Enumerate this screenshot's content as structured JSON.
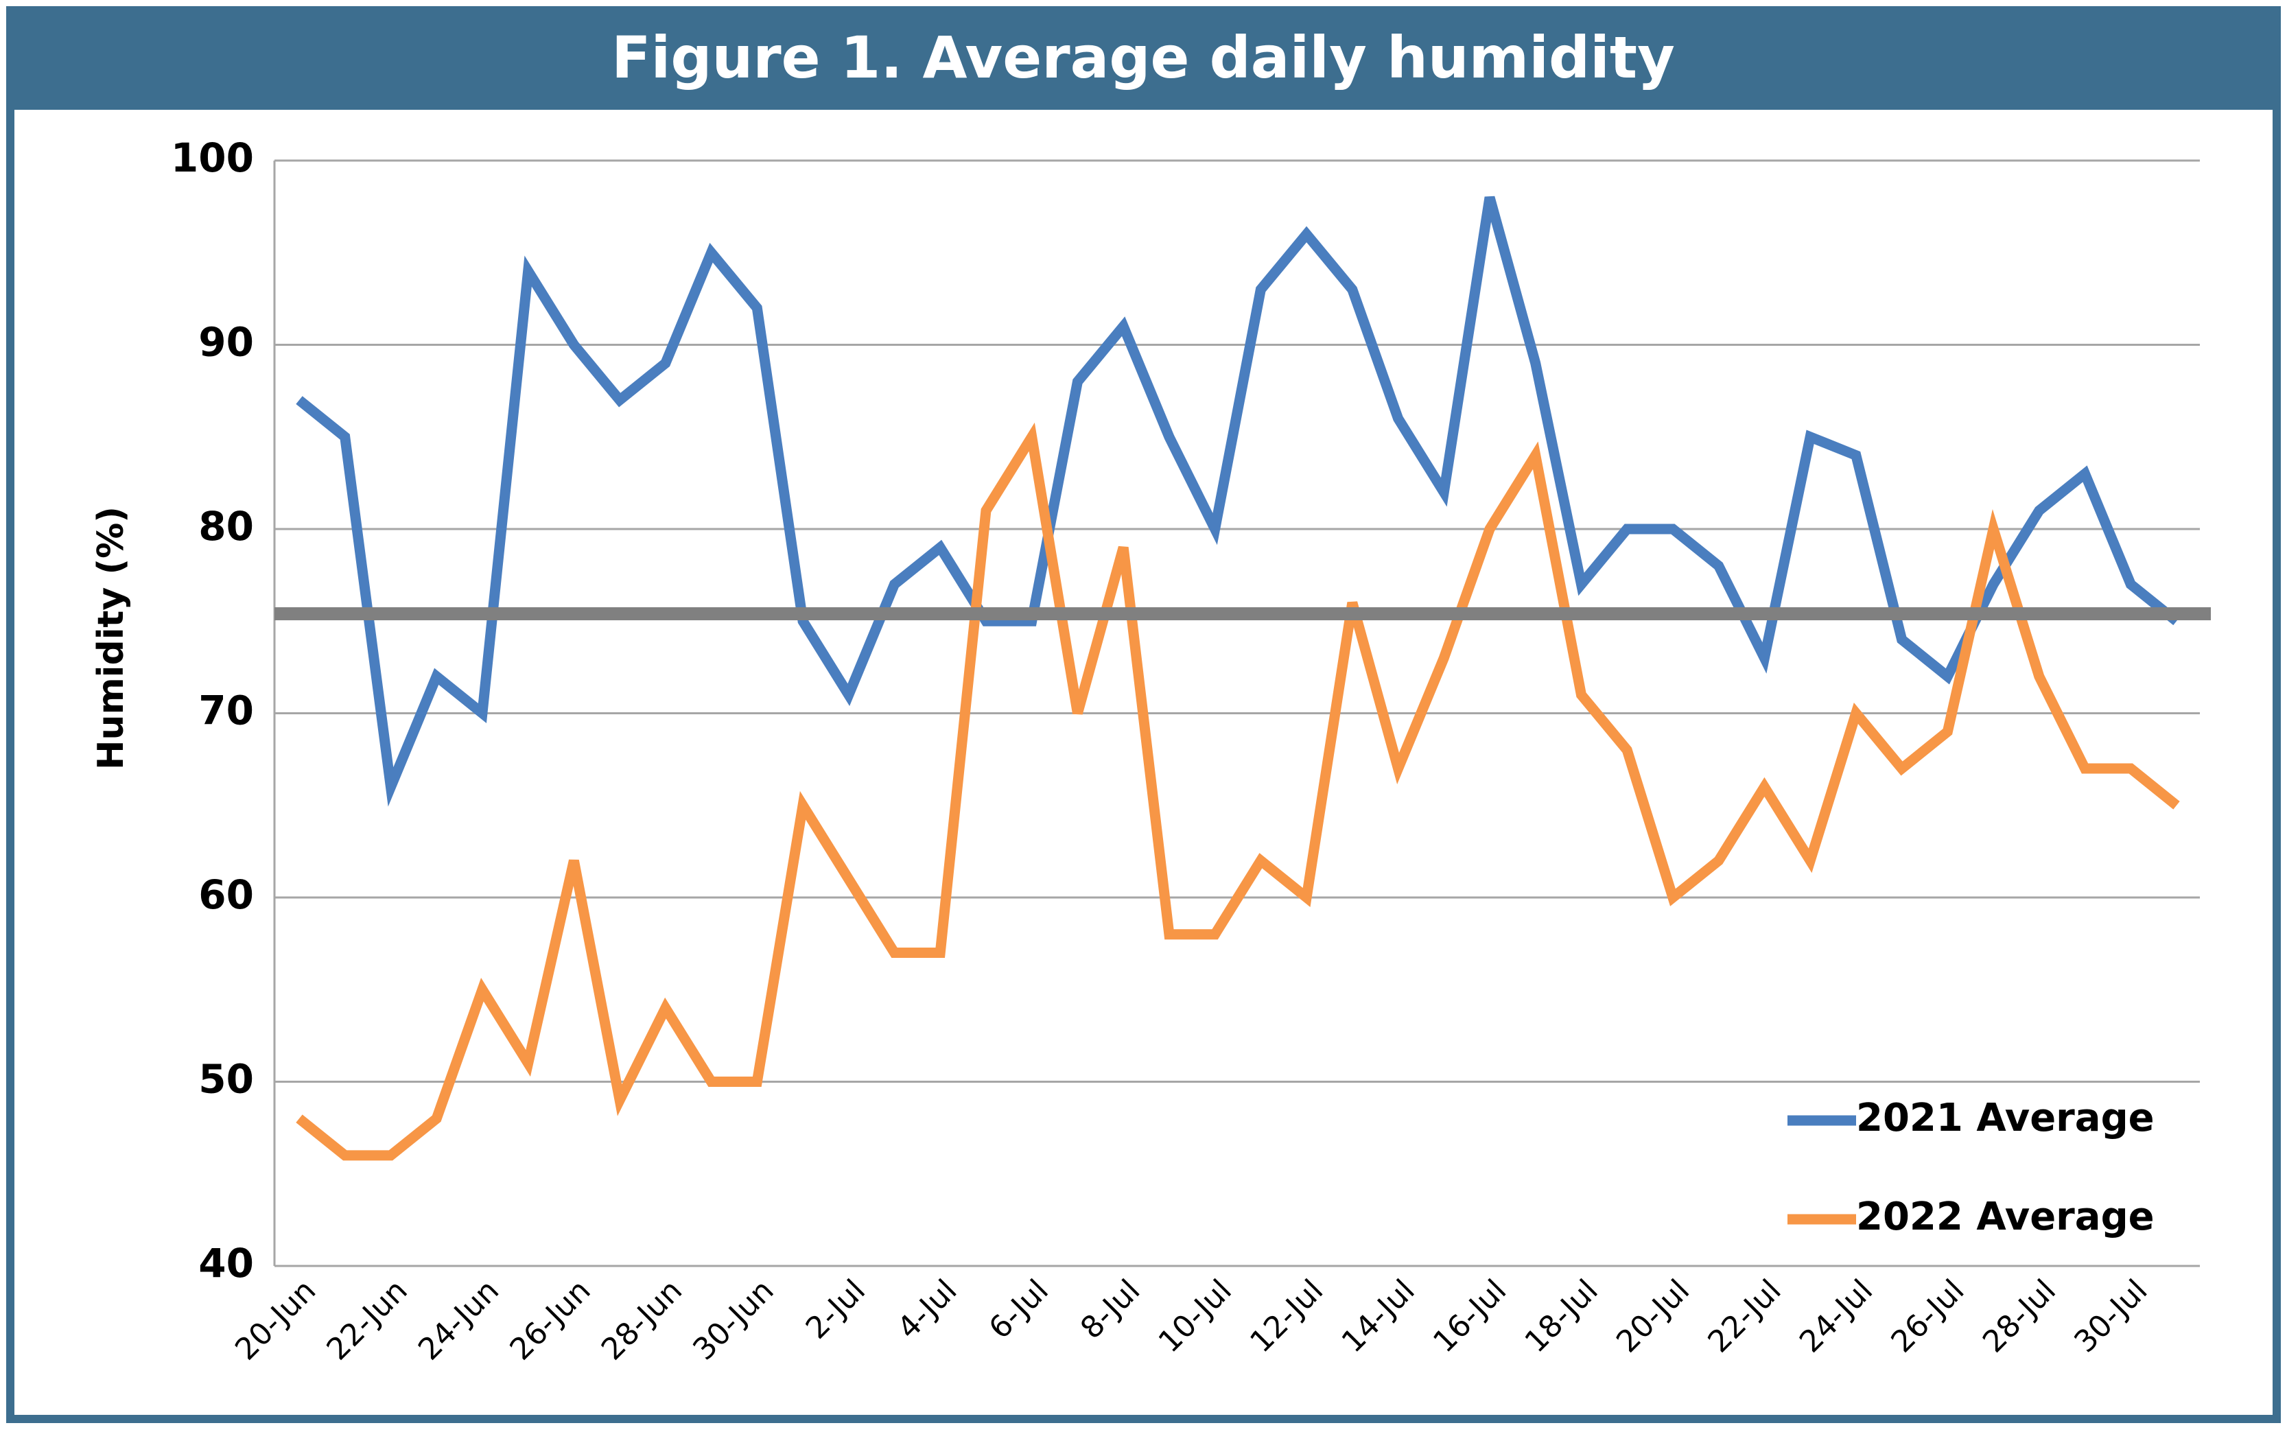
{
  "chart_data": {
    "type": "line",
    "title": "Figure 1. Average daily humidity",
    "y_label": "Humidity (%)",
    "categories": [
      "20-Jun",
      null,
      "22-Jun",
      null,
      "24-Jun",
      null,
      "26-Jun",
      null,
      "28-Jun",
      null,
      "30-Jun",
      null,
      "2-Jul",
      null,
      "4-Jul",
      null,
      "6-Jul",
      null,
      "8-Jul",
      null,
      "10-Jul",
      null,
      "12-Jul",
      null,
      "14-Jul",
      null,
      "16-Jul",
      null,
      "18-Jul",
      null,
      "20-Jul",
      null,
      "22-Jul",
      null,
      "24-Jul",
      null,
      "26-Jul",
      null,
      "28-Jul",
      null,
      "30-Jul",
      null
    ],
    "series": [
      {
        "name": "2021 Average",
        "color": "#4a7ebf",
        "values": [
          87,
          85,
          66,
          72,
          70,
          94,
          90,
          87,
          89,
          95,
          92,
          75,
          71,
          77,
          79,
          75,
          75,
          88,
          91,
          85,
          80,
          93,
          96,
          93,
          86,
          82,
          98,
          89,
          77,
          80,
          80,
          78,
          73,
          85,
          84,
          74,
          72,
          77,
          81,
          83,
          77,
          75
        ]
      },
      {
        "name": "2022 Average",
        "color": "#f79646",
        "values": [
          48,
          46,
          46,
          48,
          55,
          51,
          62,
          49,
          54,
          50,
          50,
          65,
          61,
          57,
          57,
          81,
          85,
          70,
          79,
          58,
          58,
          62,
          60,
          76,
          67,
          73,
          80,
          84,
          71,
          68,
          60,
          62,
          66,
          62,
          70,
          67,
          69,
          80,
          72,
          67,
          67,
          65
        ]
      }
    ],
    "reference_line": {
      "value": 75.4,
      "color": "#808080"
    },
    "ylim": [
      40,
      100
    ],
    "yticks": [
      40,
      50,
      60,
      70,
      80,
      90,
      100
    ],
    "grid": true
  }
}
